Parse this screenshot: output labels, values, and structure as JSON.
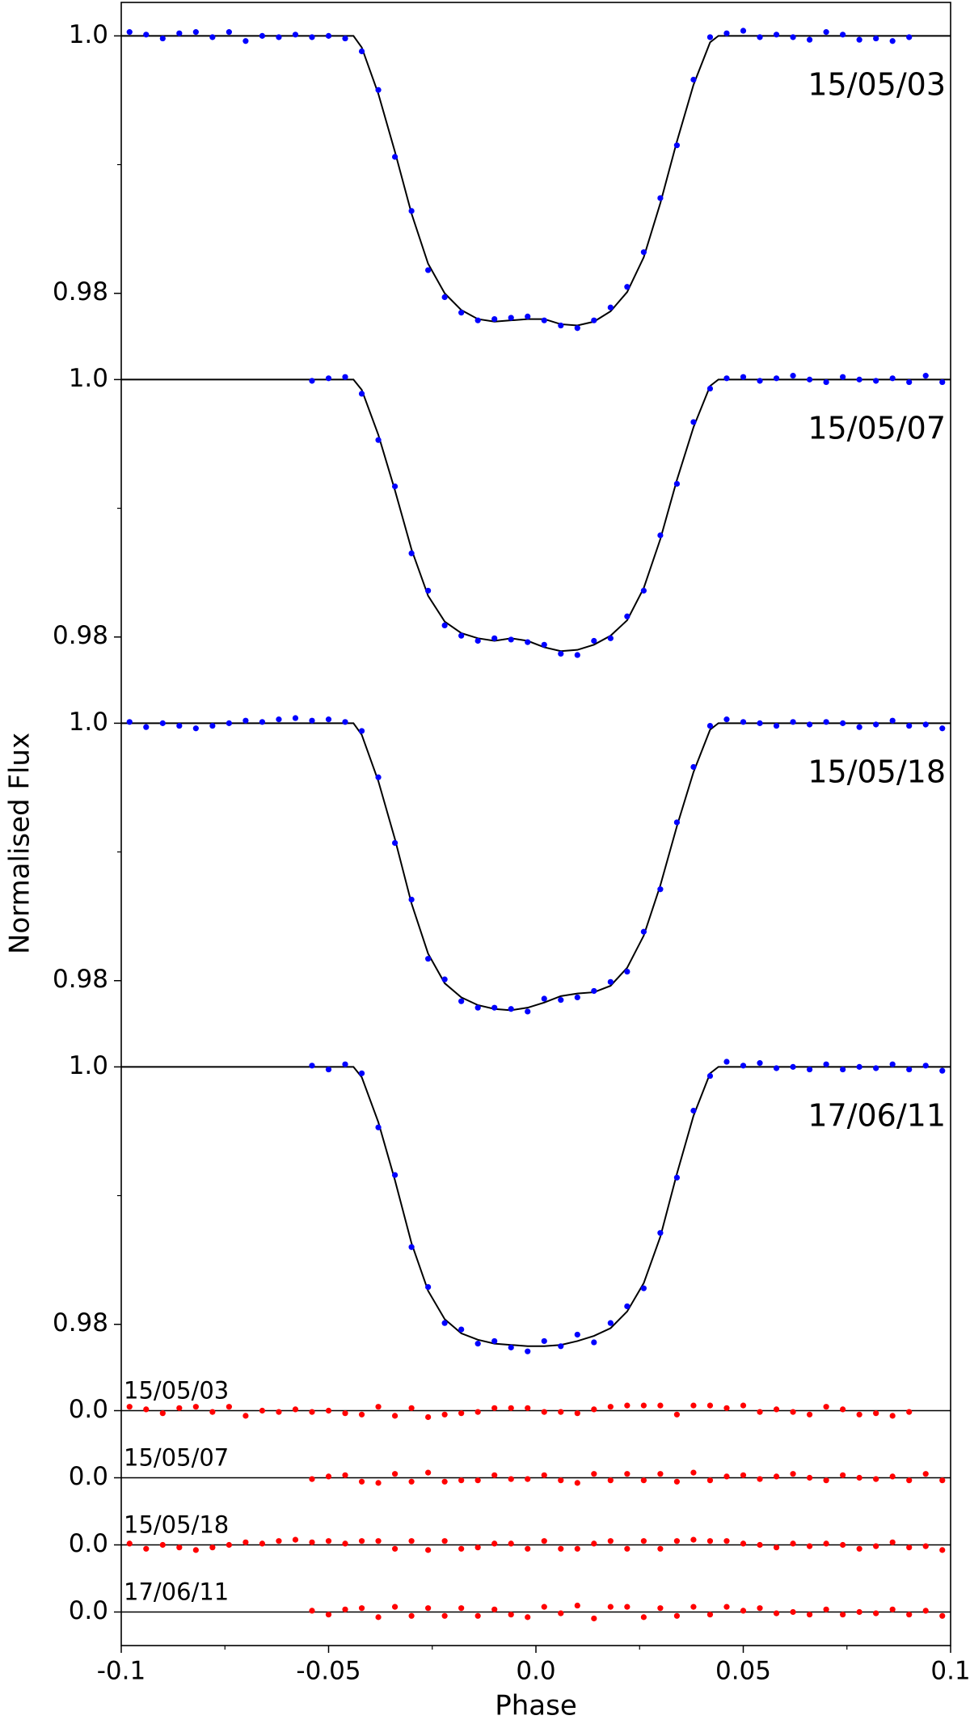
{
  "chart_data": [
    {
      "type": "scatter",
      "label": "15/05/03",
      "ylabel": "Normalised Flux",
      "color": "#0000ff",
      "x": [
        -0.098,
        -0.094,
        -0.09,
        -0.086,
        -0.082,
        -0.078,
        -0.074,
        -0.07,
        -0.066,
        -0.062,
        -0.058,
        -0.054,
        -0.05,
        -0.046,
        -0.042,
        -0.038,
        -0.034,
        -0.03,
        -0.026,
        -0.022,
        -0.018,
        -0.014,
        -0.01,
        -0.006,
        -0.002,
        0.002,
        0.006,
        0.01,
        0.014,
        0.018,
        0.022,
        0.026,
        0.03,
        0.034,
        0.038,
        0.042,
        0.046,
        0.05,
        0.054,
        0.058,
        0.062,
        0.066,
        0.07,
        0.074,
        0.078,
        0.082,
        0.086,
        0.09
      ],
      "values": [
        1.0003,
        1.0001,
        0.9998,
        1.0002,
        1.0003,
        0.9999,
        1.0003,
        0.9996,
        1.0,
        0.9999,
        1.0001,
        0.9999,
        1.0,
        0.9998,
        0.9988,
        0.9958,
        0.9906,
        0.9864,
        0.9818,
        0.9797,
        0.9785,
        0.9779,
        0.978,
        0.9781,
        0.9782,
        0.9779,
        0.9775,
        0.9773,
        0.9779,
        0.9789,
        0.9805,
        0.9832,
        0.9874,
        0.9915,
        0.9966,
        0.9999,
        1.0002,
        1.0004,
        0.9999,
        1.0001,
        0.9999,
        0.9997,
        1.0003,
        1.0001,
        0.9997,
        0.9998,
        0.9996,
        0.9999
      ],
      "model": {
        "color": "#000000",
        "x": [
          -0.1,
          -0.044,
          -0.042,
          -0.038,
          -0.034,
          -0.03,
          -0.026,
          -0.022,
          -0.018,
          -0.014,
          -0.01,
          -0.006,
          -0.002,
          0.002,
          0.006,
          0.01,
          0.014,
          0.018,
          0.022,
          0.026,
          0.03,
          0.034,
          0.038,
          0.042,
          0.044,
          0.1
        ],
        "values": [
          1,
          1,
          0.9991,
          0.9955,
          0.991,
          0.9862,
          0.9823,
          0.98,
          0.9787,
          0.978,
          0.9778,
          0.9779,
          0.978,
          0.978,
          0.9776,
          0.9775,
          0.9778,
          0.9786,
          0.9801,
          0.9828,
          0.987,
          0.9918,
          0.9962,
          0.9995,
          1,
          1
        ]
      },
      "xlim": [
        -0.1,
        0.1
      ],
      "ylim": [
        0.9759,
        1.0026
      ],
      "yticks": [
        0.98,
        {
          "value": 1,
          "label": "1.0"
        }
      ],
      "minor_yticks": [
        0.99
      ]
    },
    {
      "type": "scatter",
      "label": "15/05/07",
      "color": "#0000ff",
      "x": [
        -0.054,
        -0.05,
        -0.046,
        -0.042,
        -0.038,
        -0.034,
        -0.03,
        -0.026,
        -0.022,
        -0.018,
        -0.014,
        -0.01,
        -0.006,
        -0.002,
        0.002,
        0.006,
        0.01,
        0.014,
        0.018,
        0.022,
        0.026,
        0.03,
        0.034,
        0.038,
        0.042,
        0.046,
        0.05,
        0.054,
        0.058,
        0.062,
        0.066,
        0.07,
        0.074,
        0.078,
        0.082,
        0.086,
        0.09,
        0.094,
        0.098
      ],
      "values": [
        0.9999,
        1.0001,
        1.0002,
        0.9989,
        0.9953,
        0.9917,
        0.9865,
        0.9836,
        0.9809,
        0.9801,
        0.9797,
        0.9799,
        0.9798,
        0.9796,
        0.9794,
        0.9787,
        0.9786,
        0.9797,
        0.9799,
        0.9816,
        0.9836,
        0.9879,
        0.9919,
        0.9967,
        0.9993,
        1.0001,
        1.0002,
        0.9999,
        1.0001,
        1.0003,
        1.0,
        0.9998,
        1.0002,
        1.0,
        0.9999,
        1.0001,
        0.9998,
        1.0003,
        0.9998
      ],
      "model": {
        "color": "#000000",
        "x": [
          -0.1,
          -0.044,
          -0.042,
          -0.038,
          -0.034,
          -0.03,
          -0.026,
          -0.022,
          -0.018,
          -0.014,
          -0.01,
          -0.006,
          -0.002,
          0.002,
          0.006,
          0.01,
          0.014,
          0.018,
          0.022,
          0.026,
          0.03,
          0.034,
          0.038,
          0.042,
          0.044,
          0.1
        ],
        "values": [
          1,
          1,
          0.9992,
          0.9957,
          0.9914,
          0.9868,
          0.9832,
          0.9812,
          0.9803,
          0.9799,
          0.9797,
          0.9799,
          0.9797,
          0.9792,
          0.9789,
          0.979,
          0.9794,
          0.9801,
          0.9813,
          0.9838,
          0.9876,
          0.9922,
          0.9963,
          0.9995,
          1,
          1
        ]
      },
      "xlim": [
        -0.1,
        0.1
      ],
      "ylim": [
        0.9759,
        1.0026
      ],
      "yticks": [
        0.98,
        {
          "value": 1,
          "label": "1.0"
        }
      ],
      "minor_yticks": [
        0.99
      ]
    },
    {
      "type": "scatter",
      "label": "15/05/18",
      "color": "#0000ff",
      "x": [
        -0.098,
        -0.094,
        -0.09,
        -0.086,
        -0.082,
        -0.078,
        -0.074,
        -0.07,
        -0.066,
        -0.062,
        -0.058,
        -0.054,
        -0.05,
        -0.046,
        -0.042,
        -0.038,
        -0.034,
        -0.03,
        -0.026,
        -0.022,
        -0.018,
        -0.014,
        -0.01,
        -0.006,
        -0.002,
        0.002,
        0.006,
        0.01,
        0.014,
        0.018,
        0.022,
        0.026,
        0.03,
        0.034,
        0.038,
        0.042,
        0.046,
        0.05,
        0.054,
        0.058,
        0.062,
        0.066,
        0.07,
        0.074,
        0.078,
        0.082,
        0.086,
        0.09,
        0.094,
        0.098
      ],
      "values": [
        1.0001,
        0.9997,
        1.0,
        0.9998,
        0.9996,
        0.9998,
        1.0,
        1.0002,
        1.0001,
        1.0003,
        1.0004,
        1.0002,
        1.0003,
        1.0001,
        0.9994,
        0.9958,
        0.9907,
        0.9863,
        0.9817,
        0.9801,
        0.9784,
        0.9779,
        0.9779,
        0.9778,
        0.9776,
        0.9786,
        0.9785,
        0.9787,
        0.9792,
        0.9799,
        0.9807,
        0.9838,
        0.9871,
        0.9923,
        0.9966,
        0.9998,
        1.0003,
        1.0001,
        1.0,
        0.9998,
        1.0001,
        0.9999,
        1.0001,
        1.0,
        0.9997,
        0.9999,
        1.0002,
        0.9998,
        0.9999,
        0.9996
      ],
      "model": {
        "color": "#000000",
        "x": [
          -0.1,
          -0.044,
          -0.042,
          -0.038,
          -0.034,
          -0.03,
          -0.026,
          -0.022,
          -0.018,
          -0.014,
          -0.01,
          -0.006,
          -0.002,
          0.002,
          0.006,
          0.01,
          0.014,
          0.018,
          0.022,
          0.026,
          0.03,
          0.034,
          0.038,
          0.042,
          0.044,
          0.1
        ],
        "values": [
          1,
          1,
          0.9991,
          0.9955,
          0.991,
          0.986,
          0.9821,
          0.9798,
          0.9787,
          0.9781,
          0.9778,
          0.9777,
          0.9779,
          0.9783,
          0.9788,
          0.979,
          0.9791,
          0.9796,
          0.981,
          0.9835,
          0.9874,
          0.992,
          0.9962,
          0.9995,
          1,
          1
        ]
      },
      "xlim": [
        -0.1,
        0.1
      ],
      "ylim": [
        0.9759,
        1.0026
      ],
      "yticks": [
        0.98,
        {
          "value": 1,
          "label": "1.0"
        }
      ],
      "minor_yticks": [
        0.99
      ]
    },
    {
      "type": "scatter",
      "label": "17/06/11",
      "color": "#0000ff",
      "x": [
        -0.054,
        -0.05,
        -0.046,
        -0.042,
        -0.038,
        -0.034,
        -0.03,
        -0.026,
        -0.022,
        -0.018,
        -0.014,
        -0.01,
        -0.006,
        -0.002,
        0.002,
        0.006,
        0.01,
        0.014,
        0.018,
        0.022,
        0.026,
        0.03,
        0.034,
        0.038,
        0.042,
        0.046,
        0.05,
        0.054,
        0.058,
        0.062,
        0.066,
        0.07,
        0.074,
        0.078,
        0.082,
        0.086,
        0.09,
        0.094,
        0.098
      ],
      "values": [
        1.0001,
        0.9998,
        1.0002,
        0.9995,
        0.9953,
        0.9916,
        0.986,
        0.9829,
        0.9801,
        0.9796,
        0.9785,
        0.9787,
        0.9782,
        0.9779,
        0.9787,
        0.9783,
        0.9792,
        0.9786,
        0.9801,
        0.9814,
        0.9828,
        0.9871,
        0.9914,
        0.9966,
        0.9993,
        1.0004,
        1.0001,
        1.0003,
        0.9999,
        1.0,
        0.9998,
        1.0002,
        0.9998,
        1.0,
        0.9999,
        1.0002,
        0.9998,
        1.0001,
        0.9997
      ],
      "model": {
        "color": "#000000",
        "x": [
          -0.1,
          -0.044,
          -0.042,
          -0.038,
          -0.034,
          -0.03,
          -0.026,
          -0.022,
          -0.018,
          -0.014,
          -0.01,
          -0.006,
          -0.002,
          0.002,
          0.006,
          0.01,
          0.014,
          0.018,
          0.022,
          0.026,
          0.03,
          0.034,
          0.038,
          0.042,
          0.044,
          0.1
        ],
        "values": [
          1,
          1,
          0.9992,
          0.9957,
          0.9912,
          0.9863,
          0.9826,
          0.9804,
          0.9793,
          0.9788,
          0.9785,
          0.9784,
          0.9783,
          0.9783,
          0.9784,
          0.9787,
          0.9791,
          0.9797,
          0.981,
          0.9832,
          0.9868,
          0.9917,
          0.9962,
          0.9995,
          1,
          1
        ]
      },
      "xlim": [
        -0.1,
        0.1
      ],
      "ylim": [
        0.9759,
        1.0026
      ],
      "yticks": [
        0.98,
        {
          "value": 1,
          "label": "1.0"
        }
      ],
      "minor_yticks": [
        0.99
      ]
    },
    {
      "type": "scatter",
      "label": "15/05/03",
      "color": "#ff0000",
      "x": [
        -0.098,
        -0.094,
        -0.09,
        -0.086,
        -0.082,
        -0.078,
        -0.074,
        -0.07,
        -0.066,
        -0.062,
        -0.058,
        -0.054,
        -0.05,
        -0.046,
        -0.042,
        -0.038,
        -0.034,
        -0.03,
        -0.026,
        -0.022,
        -0.018,
        -0.014,
        -0.01,
        -0.006,
        -0.002,
        0.002,
        0.006,
        0.01,
        0.014,
        0.018,
        0.022,
        0.026,
        0.03,
        0.034,
        0.038,
        0.042,
        0.046,
        0.05,
        0.054,
        0.058,
        0.062,
        0.066,
        0.07,
        0.074,
        0.078,
        0.082,
        0.086,
        0.09
      ],
      "values": [
        0.0003,
        0.0001,
        -0.0002,
        0.0002,
        0.0003,
        -0.0001,
        0.0003,
        -0.0004,
        0,
        -0.0001,
        0.0001,
        -0.0001,
        0,
        -0.0002,
        -0.0003,
        0.0003,
        -0.0004,
        0.0002,
        -0.0005,
        -0.0003,
        -0.0002,
        -0.0001,
        0.0002,
        0.0002,
        0.0002,
        -0.0001,
        -0.0001,
        -0.0002,
        0.0001,
        0.0003,
        0.0004,
        0.0004,
        0.0004,
        -0.0003,
        0.0004,
        0.0004,
        0.0002,
        0.0004,
        -0.0001,
        0.0001,
        -0.0001,
        -0.0003,
        0.0003,
        0.0001,
        -0.0003,
        -0.0002,
        -0.0004,
        -0.0001
      ],
      "xlim": [
        -0.1,
        0.1
      ],
      "ylim": [
        -0.0026,
        0.0026
      ],
      "yticks": [
        {
          "value": 0,
          "label": "0.0"
        }
      ]
    },
    {
      "type": "scatter",
      "label": "15/05/07",
      "color": "#ff0000",
      "x": [
        -0.054,
        -0.05,
        -0.046,
        -0.042,
        -0.038,
        -0.034,
        -0.03,
        -0.026,
        -0.022,
        -0.018,
        -0.014,
        -0.01,
        -0.006,
        -0.002,
        0.002,
        0.006,
        0.01,
        0.014,
        0.018,
        0.022,
        0.026,
        0.03,
        0.034,
        0.038,
        0.042,
        0.046,
        0.05,
        0.054,
        0.058,
        0.062,
        0.066,
        0.07,
        0.074,
        0.078,
        0.082,
        0.086,
        0.09,
        0.094,
        0.098
      ],
      "values": [
        -0.0001,
        0.0001,
        0.0002,
        -0.0003,
        -0.0004,
        0.0003,
        -0.0003,
        0.0004,
        -0.0003,
        -0.0002,
        -0.0002,
        0.0002,
        -0.0001,
        -0.0001,
        0.0002,
        -0.0002,
        -0.0004,
        0.0003,
        -0.0002,
        0.0003,
        -0.0002,
        0.0003,
        -0.0003,
        0.0004,
        -0.0002,
        0.0001,
        0.0002,
        -0.0001,
        0.0001,
        0.0003,
        0,
        -0.0002,
        0.0002,
        0,
        -0.0001,
        0.0001,
        -0.0002,
        0.0003,
        -0.0002
      ],
      "xlim": [
        -0.1,
        0.1
      ],
      "ylim": [
        -0.0026,
        0.0026
      ],
      "yticks": [
        {
          "value": 0,
          "label": "0.0"
        }
      ]
    },
    {
      "type": "scatter",
      "label": "15/05/18",
      "color": "#ff0000",
      "x": [
        -0.098,
        -0.094,
        -0.09,
        -0.086,
        -0.082,
        -0.078,
        -0.074,
        -0.07,
        -0.066,
        -0.062,
        -0.058,
        -0.054,
        -0.05,
        -0.046,
        -0.042,
        -0.038,
        -0.034,
        -0.03,
        -0.026,
        -0.022,
        -0.018,
        -0.014,
        -0.01,
        -0.006,
        -0.002,
        0.002,
        0.006,
        0.01,
        0.014,
        0.018,
        0.022,
        0.026,
        0.03,
        0.034,
        0.038,
        0.042,
        0.046,
        0.05,
        0.054,
        0.058,
        0.062,
        0.066,
        0.07,
        0.074,
        0.078,
        0.082,
        0.086,
        0.09,
        0.094,
        0.098
      ],
      "values": [
        0.0001,
        -0.0003,
        0,
        -0.0002,
        -0.0004,
        -0.0002,
        0,
        0.0002,
        0.0001,
        0.0003,
        0.0004,
        0.0002,
        0.0003,
        0.0001,
        0.0003,
        0.0003,
        -0.0003,
        0.0003,
        -0.0004,
        0.0003,
        -0.0003,
        -0.0002,
        0.0001,
        0.0001,
        -0.0003,
        0.0003,
        -0.0003,
        -0.0003,
        0.0001,
        0.0003,
        -0.0003,
        0.0003,
        -0.0003,
        0.0003,
        0.0004,
        0.0003,
        0.0003,
        0.0001,
        0,
        -0.0002,
        0.0001,
        -0.0001,
        0.0001,
        0,
        -0.0003,
        -0.0001,
        0.0002,
        -0.0002,
        -0.0001,
        -0.0004
      ],
      "xlim": [
        -0.1,
        0.1
      ],
      "ylim": [
        -0.0026,
        0.0026
      ],
      "yticks": [
        {
          "value": 0,
          "label": "0.0"
        }
      ]
    },
    {
      "type": "scatter",
      "label": "17/06/11",
      "color": "#ff0000",
      "xlabel": "Phase",
      "x": [
        -0.054,
        -0.05,
        -0.046,
        -0.042,
        -0.038,
        -0.034,
        -0.03,
        -0.026,
        -0.022,
        -0.018,
        -0.014,
        -0.01,
        -0.006,
        -0.002,
        0.002,
        0.006,
        0.01,
        0.014,
        0.018,
        0.022,
        0.026,
        0.03,
        0.034,
        0.038,
        0.042,
        0.046,
        0.05,
        0.054,
        0.058,
        0.062,
        0.066,
        0.07,
        0.074,
        0.078,
        0.082,
        0.086,
        0.09,
        0.094,
        0.098
      ],
      "values": [
        0.0001,
        -0.0002,
        0.0002,
        0.0003,
        -0.0004,
        0.0004,
        -0.0003,
        0.0003,
        -0.0003,
        0.0003,
        -0.0003,
        0.0002,
        -0.0002,
        -0.0004,
        0.0004,
        -0.0001,
        0.0005,
        -0.0005,
        0.0004,
        0.0004,
        -0.0004,
        0.0003,
        -0.0003,
        0.0004,
        -0.0002,
        0.0004,
        0.0001,
        0.0003,
        -0.0001,
        0,
        -0.0002,
        0.0002,
        -0.0002,
        0,
        -0.0001,
        0.0002,
        -0.0002,
        0.0001,
        -0.0003
      ],
      "xlim": [
        -0.1,
        0.1
      ],
      "ylim": [
        -0.0026,
        0.0026
      ],
      "yticks": [
        {
          "value": 0,
          "label": "0.0"
        }
      ],
      "xticks": [
        -0.1,
        -0.05,
        {
          "value": 0,
          "label": "0.0"
        },
        0.05,
        0.1
      ],
      "minor_xticks": [
        -0.075,
        -0.025,
        0.025,
        0.075
      ]
    }
  ]
}
